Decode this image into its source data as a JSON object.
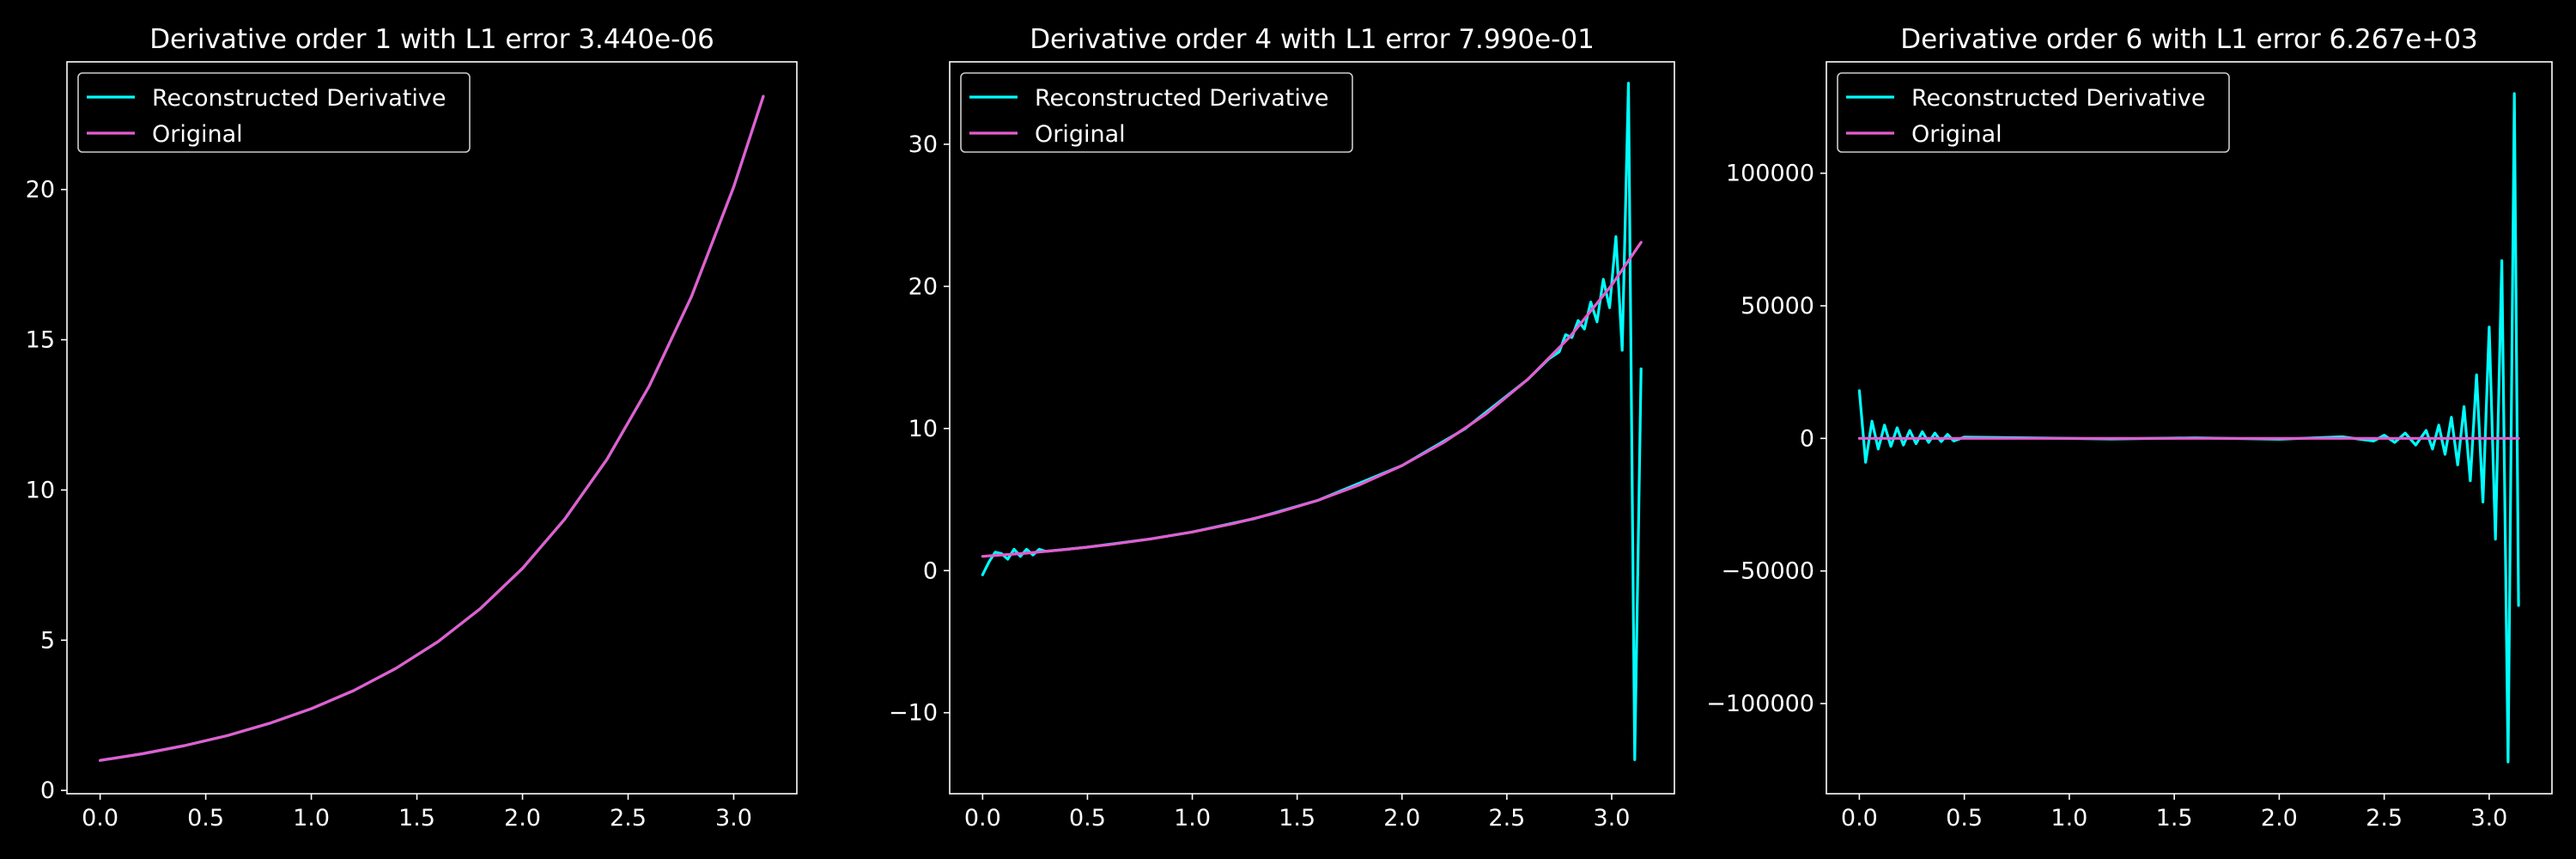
{
  "figure": {
    "background": "#000000",
    "foreground": "#ffffff"
  },
  "chart_data": [
    {
      "type": "line",
      "title": "Derivative order 1 with L1 error 3.440e-06",
      "xlabel": "",
      "ylabel": "",
      "xlim": [
        -0.157,
        3.299
      ],
      "ylim": [
        -0.11,
        24.25
      ],
      "xticks": [
        0.0,
        0.5,
        1.0,
        1.5,
        2.0,
        2.5,
        3.0
      ],
      "xtick_labels": [
        "0.0",
        "0.5",
        "1.0",
        "1.5",
        "2.0",
        "2.5",
        "3.0"
      ],
      "yticks": [
        0,
        5,
        10,
        15,
        20
      ],
      "ytick_labels": [
        "0",
        "5",
        "10",
        "15",
        "20"
      ],
      "grid": false,
      "legend_position": "top-left",
      "series": [
        {
          "name": "Reconstructed Derivative",
          "color": "#00ffff",
          "x": [
            0.0,
            0.2,
            0.4,
            0.6,
            0.8,
            1.0,
            1.2,
            1.4,
            1.6,
            1.8,
            2.0,
            2.2,
            2.4,
            2.6,
            2.8,
            3.0,
            3.14
          ],
          "y": [
            1.0,
            1.22,
            1.49,
            1.82,
            2.23,
            2.72,
            3.32,
            4.06,
            4.95,
            6.05,
            7.39,
            9.03,
            11.02,
            13.46,
            16.44,
            20.09,
            23.1
          ]
        },
        {
          "name": "Original",
          "color": "#e55ccf",
          "x": [
            0.0,
            0.2,
            0.4,
            0.6,
            0.8,
            1.0,
            1.2,
            1.4,
            1.6,
            1.8,
            2.0,
            2.2,
            2.4,
            2.6,
            2.8,
            3.0,
            3.14
          ],
          "y": [
            1.0,
            1.22,
            1.49,
            1.82,
            2.23,
            2.72,
            3.32,
            4.06,
            4.95,
            6.05,
            7.39,
            9.03,
            11.02,
            13.46,
            16.44,
            20.09,
            23.1
          ]
        }
      ]
    },
    {
      "type": "line",
      "title": "Derivative order 4 with L1 error 7.990e-01",
      "xlabel": "",
      "ylabel": "",
      "xlim": [
        -0.157,
        3.299
      ],
      "ylim": [
        -15.7,
        35.8
      ],
      "xticks": [
        0.0,
        0.5,
        1.0,
        1.5,
        2.0,
        2.5,
        3.0
      ],
      "xtick_labels": [
        "0.0",
        "0.5",
        "1.0",
        "1.5",
        "2.0",
        "2.5",
        "3.0"
      ],
      "yticks": [
        -10,
        0,
        10,
        20,
        30
      ],
      "ytick_labels": [
        "−10",
        "0",
        "10",
        "20",
        "30"
      ],
      "grid": false,
      "legend_position": "top-left",
      "series": [
        {
          "name": "Reconstructed Derivative",
          "color": "#00ffff",
          "x": [
            0.0,
            0.03,
            0.06,
            0.09,
            0.12,
            0.15,
            0.18,
            0.21,
            0.24,
            0.27,
            0.3,
            0.5,
            0.8,
            1.0,
            1.3,
            1.6,
            2.0,
            2.3,
            2.6,
            2.7,
            2.75,
            2.78,
            2.81,
            2.84,
            2.87,
            2.9,
            2.93,
            2.96,
            2.99,
            3.02,
            3.05,
            3.08,
            3.11,
            3.14
          ],
          "y": [
            -0.3,
            0.6,
            1.3,
            1.2,
            0.8,
            1.5,
            1.0,
            1.5,
            1.1,
            1.5,
            1.35,
            1.65,
            2.23,
            2.72,
            3.67,
            4.95,
            7.39,
            9.97,
            13.46,
            14.9,
            15.4,
            16.6,
            16.4,
            17.6,
            17.0,
            18.9,
            17.5,
            20.5,
            18.5,
            23.5,
            15.5,
            34.3,
            -13.3,
            14.2
          ]
        },
        {
          "name": "Original",
          "color": "#e55ccf",
          "x": [
            0.0,
            0.2,
            0.4,
            0.6,
            0.8,
            1.0,
            1.2,
            1.4,
            1.6,
            1.8,
            2.0,
            2.2,
            2.4,
            2.6,
            2.8,
            3.0,
            3.14
          ],
          "y": [
            1.0,
            1.22,
            1.49,
            1.82,
            2.23,
            2.72,
            3.32,
            4.06,
            4.95,
            6.05,
            7.39,
            9.03,
            11.02,
            13.46,
            16.44,
            20.09,
            23.1
          ]
        }
      ]
    },
    {
      "type": "line",
      "title": "Derivative order 6 with L1 error 6.267e+03",
      "xlabel": "",
      "ylabel": "",
      "xlim": [
        -0.157,
        3.299
      ],
      "ylim": [
        -134000,
        142000
      ],
      "xticks": [
        0.0,
        0.5,
        1.0,
        1.5,
        2.0,
        2.5,
        3.0
      ],
      "xtick_labels": [
        "0.0",
        "0.5",
        "1.0",
        "1.5",
        "2.0",
        "2.5",
        "3.0"
      ],
      "yticks": [
        -100000,
        -50000,
        0,
        50000,
        100000
      ],
      "ytick_labels": [
        "−100000",
        "−50000",
        "0",
        "50000",
        "100000"
      ],
      "grid": false,
      "legend_position": "top-left",
      "series": [
        {
          "name": "Reconstructed Derivative",
          "color": "#00ffff",
          "x": [
            0.0,
            0.03,
            0.06,
            0.09,
            0.12,
            0.15,
            0.18,
            0.21,
            0.24,
            0.27,
            0.3,
            0.33,
            0.36,
            0.39,
            0.42,
            0.45,
            0.5,
            0.8,
            1.2,
            1.6,
            2.0,
            2.3,
            2.45,
            2.5,
            2.55,
            2.6,
            2.65,
            2.7,
            2.73,
            2.76,
            2.79,
            2.82,
            2.85,
            2.88,
            2.91,
            2.94,
            2.97,
            3.0,
            3.03,
            3.06,
            3.09,
            3.12,
            3.14
          ],
          "y": [
            18000,
            -9000,
            6500,
            -4000,
            5000,
            -3000,
            4000,
            -2500,
            3000,
            -2000,
            2500,
            -1500,
            2000,
            -1200,
            1500,
            -1000,
            500,
            200,
            -200,
            200,
            -300,
            600,
            -1000,
            1200,
            -1500,
            2000,
            -2500,
            3000,
            -4000,
            5000,
            -6000,
            8000,
            -10000,
            12000,
            -16000,
            24000,
            -24000,
            42000,
            -38000,
            67000,
            -122000,
            130000,
            -63000
          ]
        },
        {
          "name": "Original",
          "color": "#e55ccf",
          "x": [
            0.0,
            0.5,
            1.0,
            1.5,
            2.0,
            2.5,
            3.0,
            3.14
          ],
          "y": [
            1.0,
            1.65,
            2.72,
            4.48,
            7.39,
            12.18,
            20.09,
            23.1
          ]
        }
      ]
    }
  ]
}
